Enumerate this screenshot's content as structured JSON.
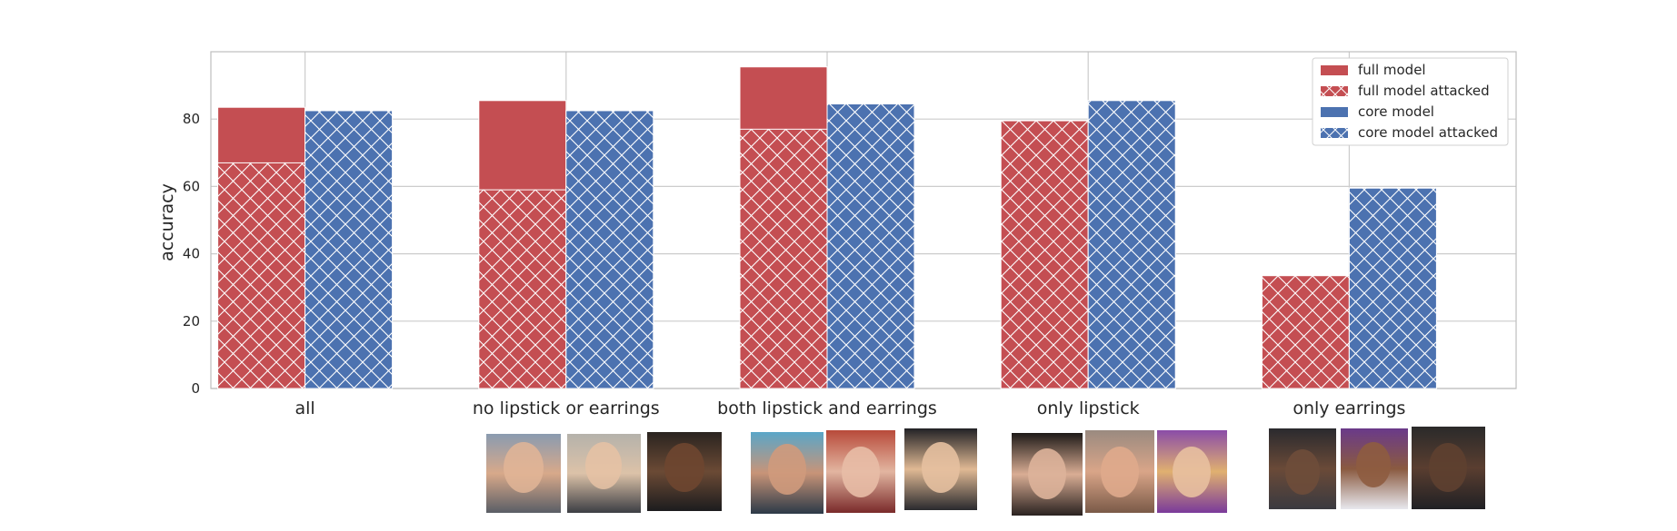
{
  "chart_data": {
    "type": "bar",
    "title": "",
    "xlabel": "",
    "ylabel": "accuracy",
    "ylim": [
      0,
      100
    ],
    "yticks": [
      0,
      20,
      40,
      60,
      80
    ],
    "grid": true,
    "legend_position": "top-right",
    "categories": [
      "all",
      "no lipstick or earrings",
      "both lipstick and earrings",
      "only lipstick",
      "only earrings"
    ],
    "series": [
      {
        "name": "full model",
        "color": "#c44e52",
        "hatch": "none",
        "values": [
          83.5,
          85.5,
          95.5,
          79.5,
          33.5
        ]
      },
      {
        "name": "full model attacked",
        "color": "#c44e52",
        "hatch": "cross",
        "values": [
          67,
          59,
          77,
          79.5,
          33.5
        ]
      },
      {
        "name": "core model",
        "color": "#4c72b0",
        "hatch": "none",
        "values": [
          82.5,
          82.5,
          84.5,
          85.5,
          59.5
        ]
      },
      {
        "name": "core model attacked",
        "color": "#4c72b0",
        "hatch": "cross",
        "values": [
          82.5,
          82.5,
          84.5,
          85.5,
          59.5
        ]
      }
    ],
    "face_thumbnails_per_category": [
      0,
      3,
      3,
      3,
      3
    ]
  },
  "colors": {
    "full": "#c44e52",
    "core": "#4c72b0",
    "grid": "#cccccc",
    "hatch": "#ffffff"
  }
}
